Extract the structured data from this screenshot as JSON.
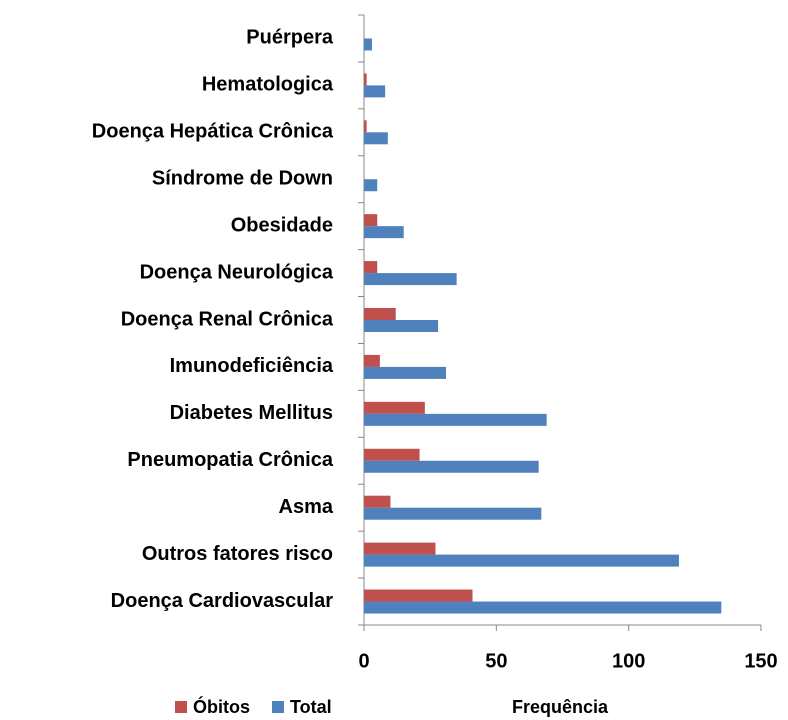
{
  "chart_data": {
    "type": "barh",
    "categories": [
      "Puérpera",
      "Hematologica",
      "Doença Hepática Crônica",
      "Síndrome de Down",
      "Obesidade",
      "Doença Neurológica",
      "Doença Renal Crônica",
      "Imunodeficiência",
      "Diabetes Mellitus",
      "Pneumopatia Crônica",
      "Asma",
      "Outros fatores risco",
      "Doença Cardiovascular"
    ],
    "series": [
      {
        "name": "Óbitos",
        "color": "#c0504d",
        "values": [
          0,
          1,
          1,
          0,
          5,
          5,
          12,
          6,
          23,
          21,
          10,
          27,
          41
        ]
      },
      {
        "name": "Total",
        "color": "#4f81bd",
        "values": [
          3,
          8,
          9,
          5,
          15,
          35,
          28,
          31,
          69,
          66,
          67,
          119,
          135
        ]
      }
    ],
    "x_label": "Frequência",
    "xlim": [
      0,
      150
    ],
    "xticks": [
      0,
      50,
      100,
      150
    ],
    "legend": "bottom-left"
  }
}
